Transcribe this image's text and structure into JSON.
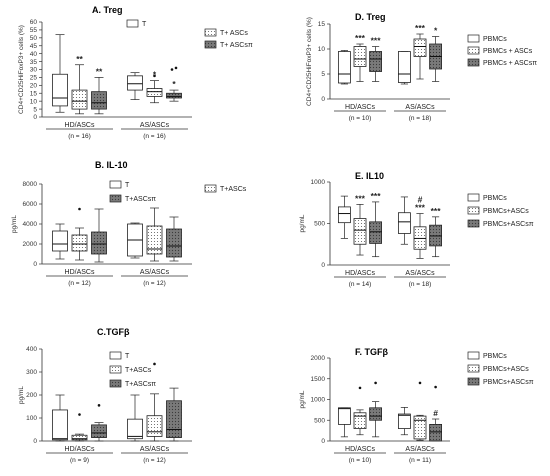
{
  "chart_data": [
    {
      "type": "box",
      "title": "A. Treg",
      "ylabel": "CD4+CD25HiFoxP3+ cells (%)",
      "ylim": [
        0,
        60
      ],
      "yticks": [
        0,
        5,
        10,
        15,
        20,
        25,
        30,
        35,
        40,
        45,
        50,
        55,
        60
      ],
      "series": [
        {
          "name": "T",
          "fill": "white"
        },
        {
          "name": "T+ ASCs",
          "fill": "dots"
        },
        {
          "name": "T+ ASCsπ",
          "fill": "dark"
        }
      ],
      "groups": [
        {
          "label": "HD/ASCs",
          "n": "(n = 16)",
          "boxes": [
            {
              "min": 3,
              "q1": 7,
              "median": 12,
              "q3": 27,
              "max": 52,
              "outliers": [],
              "sig": ""
            },
            {
              "min": 2,
              "q1": 5,
              "median": 10,
              "q3": 17,
              "max": 33,
              "outliers": [],
              "sig": "**"
            },
            {
              "min": 2,
              "q1": 5,
              "median": 9,
              "q3": 16,
              "max": 25,
              "outliers": [],
              "sig": "**"
            }
          ]
        },
        {
          "label": "AS/ASCs",
          "n": "(n = 16)",
          "boxes": [
            {
              "min": 11,
              "q1": 17,
              "median": 21,
              "q3": 26,
              "max": 28,
              "outliers": [],
              "sig": ""
            },
            {
              "min": 9,
              "q1": 13,
              "median": 16,
              "q3": 18,
              "max": 23,
              "outliers": [
                26
              ],
              "sig": "*"
            },
            {
              "min": 10,
              "q1": 12,
              "median": 13,
              "q3": 15,
              "max": 17,
              "outliers": [
                30,
                31
              ],
              "sig": "*"
            }
          ]
        }
      ]
    },
    {
      "type": "box",
      "title": "D. Treg",
      "ylabel": "CD4+CD25HiFoxP3+ cells (%)",
      "ylim": [
        0,
        15
      ],
      "yticks": [
        0,
        5,
        10,
        15
      ],
      "series": [
        {
          "name": "PBMCs",
          "fill": "white"
        },
        {
          "name": "PBMCs + ASCs",
          "fill": "dots"
        },
        {
          "name": "PBMCs + ASCsπ",
          "fill": "dark"
        }
      ],
      "groups": [
        {
          "label": "HD/ASCs",
          "n": "(n = 10)",
          "boxes": [
            {
              "min": 3,
              "q1": 3.2,
              "median": 5,
              "q3": 9.5,
              "max": 9.7,
              "outliers": [],
              "sig": ""
            },
            {
              "min": 3.5,
              "q1": 6.5,
              "median": 8,
              "q3": 10.5,
              "max": 11,
              "outliers": [],
              "sig": "***"
            },
            {
              "min": 3.5,
              "q1": 5.5,
              "median": 8,
              "q3": 9.5,
              "max": 10.5,
              "outliers": [],
              "sig": "***"
            }
          ]
        },
        {
          "label": "AS/ASCs",
          "n": "(n = 18)",
          "boxes": [
            {
              "min": 3,
              "q1": 3.3,
              "median": 5,
              "q3": 9.5,
              "max": 9.5,
              "outliers": [],
              "sig": ""
            },
            {
              "min": 4,
              "q1": 8.5,
              "median": 10.5,
              "q3": 12,
              "max": 13,
              "outliers": [],
              "sig": "***"
            },
            {
              "min": 3.5,
              "q1": 6,
              "median": 8.5,
              "q3": 11,
              "max": 12.5,
              "outliers": [],
              "sig": "*"
            }
          ]
        }
      ]
    },
    {
      "type": "box",
      "title": "B. IL-10",
      "ylabel": "pg/mL",
      "ylim": [
        0,
        8000
      ],
      "yticks": [
        0,
        2000,
        4000,
        6000,
        8000
      ],
      "series": [
        {
          "name": "T",
          "fill": "white"
        },
        {
          "name": "T+ASCs",
          "fill": "dots"
        },
        {
          "name": "T+ASCsπ",
          "fill": "dark"
        }
      ],
      "groups": [
        {
          "label": "HD/ASCs",
          "n": "(n = 12)",
          "boxes": [
            {
              "min": 500,
              "q1": 1300,
              "median": 2000,
              "q3": 3300,
              "max": 4000,
              "outliers": [],
              "sig": ""
            },
            {
              "min": 400,
              "q1": 1300,
              "median": 2000,
              "q3": 2900,
              "max": 3600,
              "outliers": [
                5500
              ],
              "sig": ""
            },
            {
              "min": 200,
              "q1": 1000,
              "median": 2000,
              "q3": 3200,
              "max": 5500,
              "outliers": [],
              "sig": ""
            }
          ]
        },
        {
          "label": "AS/ASCs",
          "n": "(n = 12)",
          "boxes": [
            {
              "min": 600,
              "q1": 800,
              "median": 2400,
              "q3": 4000,
              "max": 4100,
              "outliers": [],
              "sig": ""
            },
            {
              "min": 300,
              "q1": 1000,
              "median": 1500,
              "q3": 3800,
              "max": 5600,
              "outliers": [],
              "sig": ""
            },
            {
              "min": 300,
              "q1": 700,
              "median": 1800,
              "q3": 3500,
              "max": 4700,
              "outliers": [],
              "sig": ""
            }
          ]
        }
      ]
    },
    {
      "type": "box",
      "title": "E. IL10",
      "ylabel": "pg/mL",
      "ylim": [
        0,
        1000
      ],
      "yticks": [
        0,
        500,
        1000
      ],
      "series": [
        {
          "name": "PBMCs",
          "fill": "white"
        },
        {
          "name": "PBMCs+ASCs",
          "fill": "dots"
        },
        {
          "name": "PBMCs+ASCsπ",
          "fill": "dark"
        }
      ],
      "groups": [
        {
          "label": "HD/ASCs",
          "n": "(n = 14)",
          "boxes": [
            {
              "min": 320,
              "q1": 510,
              "median": 620,
              "q3": 700,
              "max": 830,
              "outliers": [],
              "sig": ""
            },
            {
              "min": 120,
              "q1": 250,
              "median": 420,
              "q3": 560,
              "max": 730,
              "outliers": [],
              "sig": "***"
            },
            {
              "min": 100,
              "q1": 260,
              "median": 400,
              "q3": 520,
              "max": 760,
              "outliers": [],
              "sig": "***"
            }
          ]
        },
        {
          "label": "AS/ASCs",
          "n": "(n = 18)",
          "boxes": [
            {
              "min": 250,
              "q1": 380,
              "median": 520,
              "q3": 630,
              "max": 820,
              "outliers": [],
              "sig": ""
            },
            {
              "min": 80,
              "q1": 190,
              "median": 320,
              "q3": 460,
              "max": 620,
              "outliers": [],
              "sig": "#\n***"
            },
            {
              "min": 100,
              "q1": 230,
              "median": 350,
              "q3": 480,
              "max": 580,
              "outliers": [],
              "sig": "***"
            }
          ]
        }
      ]
    },
    {
      "type": "box",
      "title": "C.TGFβ",
      "ylabel": "pg/mL",
      "ylim": [
        0,
        400
      ],
      "yticks": [
        0,
        100,
        200,
        300,
        400
      ],
      "series": [
        {
          "name": "T",
          "fill": "white"
        },
        {
          "name": "T+ASCs",
          "fill": "dots"
        },
        {
          "name": "T+ASCsπ",
          "fill": "dark"
        }
      ],
      "groups": [
        {
          "label": "HD/ASCs",
          "n": "(n = 9)",
          "boxes": [
            {
              "min": 0,
              "q1": 5,
              "median": 10,
              "q3": 135,
              "max": 200,
              "outliers": [],
              "sig": ""
            },
            {
              "min": 0,
              "q1": 5,
              "median": 10,
              "q3": 25,
              "max": 30,
              "outliers": [
                115
              ],
              "sig": ""
            },
            {
              "min": 0,
              "q1": 15,
              "median": 35,
              "q3": 70,
              "max": 80,
              "outliers": [
                155
              ],
              "sig": ""
            }
          ]
        },
        {
          "label": "AS/ASCs",
          "n": "(n = 12)",
          "boxes": [
            {
              "min": 0,
              "q1": 10,
              "median": 20,
              "q3": 95,
              "max": 200,
              "outliers": [],
              "sig": ""
            },
            {
              "min": 0,
              "q1": 20,
              "median": 40,
              "q3": 110,
              "max": 205,
              "outliers": [
                335
              ],
              "sig": ""
            },
            {
              "min": 0,
              "q1": 15,
              "median": 50,
              "q3": 175,
              "max": 230,
              "outliers": [],
              "sig": ""
            }
          ]
        }
      ]
    },
    {
      "type": "box",
      "title": "F. TGFβ",
      "ylabel": "pg/mL",
      "ylim": [
        0,
        2000
      ],
      "yticks": [
        0,
        500,
        1000,
        1500,
        2000
      ],
      "series": [
        {
          "name": "PBMCs",
          "fill": "white"
        },
        {
          "name": "PBMCs+ASCs",
          "fill": "dots"
        },
        {
          "name": "PBMCs+ASCsπ",
          "fill": "dark"
        }
      ],
      "groups": [
        {
          "label": "HD/ASCs",
          "n": "(n = 10)",
          "boxes": [
            {
              "min": 100,
              "q1": 400,
              "median": 780,
              "q3": 800,
              "max": 800,
              "outliers": [],
              "sig": ""
            },
            {
              "min": 150,
              "q1": 300,
              "median": 600,
              "q3": 680,
              "max": 750,
              "outliers": [
                1280
              ],
              "sig": ""
            },
            {
              "min": 100,
              "q1": 500,
              "median": 600,
              "q3": 800,
              "max": 950,
              "outliers": [
                1400
              ],
              "sig": ""
            }
          ]
        },
        {
          "label": "AS/ASCs",
          "n": "(n = 11)",
          "boxes": [
            {
              "min": 150,
              "q1": 300,
              "median": 620,
              "q3": 650,
              "max": 810,
              "outliers": [],
              "sig": ""
            },
            {
              "min": 20,
              "q1": 50,
              "median": 500,
              "q3": 600,
              "max": 620,
              "outliers": [
                1400
              ],
              "sig": ""
            },
            {
              "min": 0,
              "q1": 0,
              "median": 220,
              "q3": 400,
              "max": 530,
              "outliers": [
                1300
              ],
              "sig": "#"
            }
          ]
        }
      ]
    }
  ]
}
